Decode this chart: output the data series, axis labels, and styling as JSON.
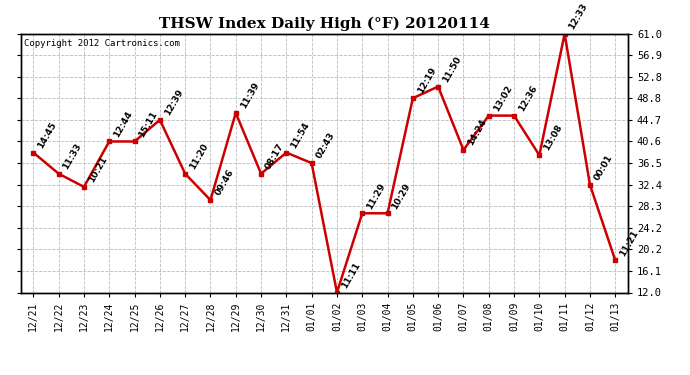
{
  "title": "THSW Index Daily High (°F) 20120114",
  "copyright": "Copyright 2012 Cartronics.com",
  "x_labels": [
    "12/21",
    "12/22",
    "12/23",
    "12/24",
    "12/25",
    "12/26",
    "12/27",
    "12/28",
    "12/29",
    "12/30",
    "12/31",
    "01/01",
    "01/02",
    "01/03",
    "01/04",
    "01/05",
    "01/06",
    "01/07",
    "01/08",
    "01/09",
    "01/10",
    "01/11",
    "01/12",
    "01/13"
  ],
  "y_values": [
    38.5,
    34.5,
    32.0,
    40.6,
    40.6,
    44.7,
    34.5,
    29.5,
    46.0,
    34.5,
    38.5,
    36.5,
    12.0,
    27.0,
    27.0,
    48.8,
    51.0,
    39.0,
    45.5,
    45.5,
    38.0,
    61.0,
    32.4,
    18.1
  ],
  "annotations": [
    "14:45",
    "11:33",
    "10:21",
    "12:44",
    "15:11",
    "12:39",
    "11:20",
    "09:46",
    "11:39",
    "08:17",
    "11:54",
    "02:43",
    "11:11",
    "11:29",
    "10:29",
    "12:19",
    "11:50",
    "14:24",
    "13:02",
    "12:36",
    "13:08",
    "12:33",
    "00:01",
    "11:21"
  ],
  "y_ticks": [
    12.0,
    16.1,
    20.2,
    24.2,
    28.3,
    32.4,
    36.5,
    40.6,
    44.7,
    48.8,
    52.8,
    56.9,
    61.0
  ],
  "line_color": "#cc0000",
  "marker_color": "#cc0000",
  "background_color": "#ffffff",
  "grid_color": "#bbbbbb",
  "title_fontsize": 11,
  "annotation_fontsize": 6.5,
  "copyright_fontsize": 6.5
}
